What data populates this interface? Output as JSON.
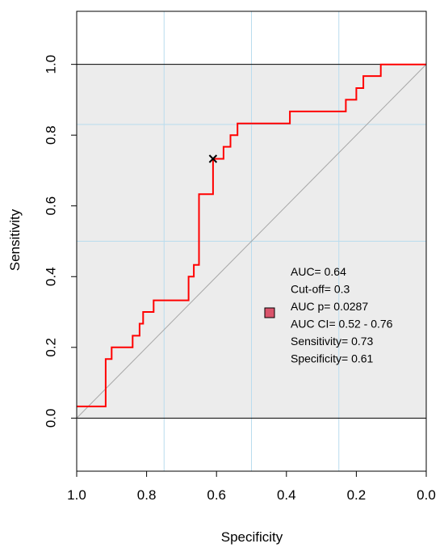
{
  "chart_data": {
    "type": "line",
    "xlabel": "Specificity",
    "ylabel": "Sensitivity",
    "xlim": [
      1.0,
      0.0
    ],
    "ylim": [
      -0.15,
      1.15
    ],
    "x_reversed": true,
    "x_ticks": [
      "1.0",
      "0.8",
      "0.6",
      "0.4",
      "0.2",
      "0.0"
    ],
    "x_tick_values": [
      1.0,
      0.8,
      0.6,
      0.4,
      0.2,
      0.0
    ],
    "y_ticks": [
      "0.0",
      "0.2",
      "0.4",
      "0.6",
      "0.8",
      "1.0"
    ],
    "y_tick_values": [
      0.0,
      0.2,
      0.4,
      0.6,
      0.8,
      1.0
    ],
    "grid_x": [
      0.75,
      0.5,
      0.25
    ],
    "grid_y": [
      0.5,
      0.83
    ],
    "grid": true,
    "shaded_region": {
      "y_from": 0.0,
      "y_to": 1.0
    },
    "diagonal": {
      "from": [
        1.0,
        0.0
      ],
      "to": [
        0.0,
        1.0
      ]
    },
    "series": [
      {
        "color": "#ff0000",
        "x": [
          1.0,
          0.917,
          0.917,
          0.9,
          0.9,
          0.84,
          0.84,
          0.82,
          0.82,
          0.81,
          0.81,
          0.78,
          0.78,
          0.68,
          0.68,
          0.665,
          0.665,
          0.65,
          0.65,
          0.61,
          0.61,
          0.58,
          0.58,
          0.56,
          0.56,
          0.54,
          0.54,
          0.52,
          0.52,
          0.39,
          0.39,
          0.23,
          0.23,
          0.2,
          0.2,
          0.18,
          0.18,
          0.13,
          0.13,
          0.0
        ],
        "y": [
          0.033,
          0.033,
          0.167,
          0.167,
          0.2,
          0.2,
          0.233,
          0.233,
          0.267,
          0.267,
          0.3,
          0.3,
          0.333,
          0.333,
          0.4,
          0.4,
          0.433,
          0.433,
          0.633,
          0.633,
          0.733,
          0.733,
          0.767,
          0.767,
          0.8,
          0.8,
          0.833,
          0.833,
          0.833,
          0.833,
          0.867,
          0.867,
          0.9,
          0.9,
          0.933,
          0.933,
          0.967,
          0.967,
          1.0,
          1.0
        ]
      }
    ],
    "cutoff_point": {
      "x": 0.61,
      "y": 0.733,
      "marker": "x"
    },
    "stats_marker_color": "#d9546b",
    "stats": [
      "AUC=  0.64",
      "Cut-off= 0.3",
      "AUC p= 0.0287",
      "AUC CI=  0.52 - 0.76",
      "Sensitivity=  0.73",
      "Specificity=  0.61"
    ]
  }
}
